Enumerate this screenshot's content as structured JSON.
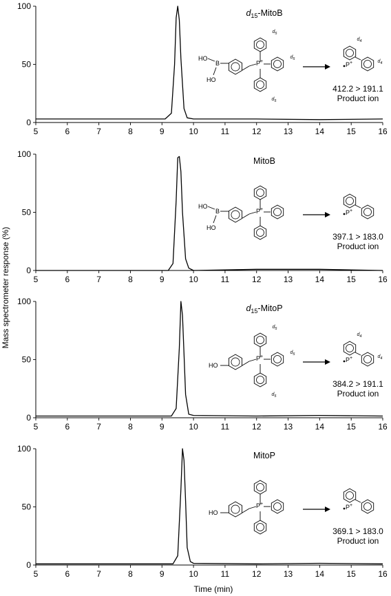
{
  "figure": {
    "ylabel": "Mass spectrometer response (%)",
    "xlabel": "Time (min)"
  },
  "panels": [
    {
      "compound_label": {
        "prefix": "d",
        "sub": "15",
        "name": "-MitoB"
      },
      "headgroup": "boronic",
      "deuterated": true,
      "mrm": "412.2 > 191.1",
      "product_label": "Product ion"
    },
    {
      "compound_label": {
        "prefix": "",
        "sub": "",
        "name": "MitoB"
      },
      "headgroup": "boronic",
      "deuterated": false,
      "mrm": "397.1 > 183.0",
      "product_label": "Product ion"
    },
    {
      "compound_label": {
        "prefix": "d",
        "sub": "15",
        "name": "-MitoP"
      },
      "headgroup": "phenol",
      "deuterated": true,
      "mrm": "384.2 > 191.1",
      "product_label": "Product ion"
    },
    {
      "compound_label": {
        "prefix": "",
        "sub": "",
        "name": "MitoP"
      },
      "headgroup": "phenol",
      "deuterated": false,
      "mrm": "369.1 > 183.0",
      "product_label": "Product ion"
    }
  ],
  "chem_labels": {
    "ho": "HO",
    "b": "B",
    "p_plus": "P+",
    "d5": "d5",
    "d4": "d4"
  },
  "chart_data": [
    {
      "type": "line",
      "title": "",
      "xlabel": "Time (min)",
      "ylabel": "Mass spectrometer response (%)",
      "xlim": [
        5,
        16
      ],
      "ylim": [
        0,
        100
      ],
      "xticks": [
        5,
        6,
        7,
        8,
        9,
        10,
        11,
        12,
        13,
        14,
        15,
        16
      ],
      "yticks": [
        0,
        50,
        100
      ],
      "grid": false,
      "series": [
        {
          "x": [
            5,
            8,
            9.1,
            9.3,
            9.4,
            9.45,
            9.5,
            9.55,
            9.6,
            9.7,
            9.8,
            10,
            12,
            14,
            16
          ],
          "y": [
            3,
            3,
            3,
            8,
            50,
            90,
            100,
            88,
            55,
            12,
            4,
            3,
            3,
            2.5,
            3
          ]
        }
      ]
    },
    {
      "type": "line",
      "title": "",
      "xlabel": "Time (min)",
      "ylabel": "Mass spectrometer response (%)",
      "xlim": [
        5,
        16
      ],
      "ylim": [
        0,
        100
      ],
      "xticks": [
        5,
        6,
        7,
        8,
        9,
        10,
        11,
        12,
        13,
        14,
        15,
        16
      ],
      "yticks": [
        0,
        50,
        100
      ],
      "grid": false,
      "series": [
        {
          "x": [
            5,
            8,
            9.2,
            9.35,
            9.45,
            9.5,
            9.55,
            9.6,
            9.65,
            9.75,
            9.85,
            10,
            12,
            14,
            16
          ],
          "y": [
            0,
            0,
            0,
            6,
            60,
            97,
            98,
            85,
            50,
            10,
            2,
            0,
            1,
            1,
            0
          ]
        }
      ]
    },
    {
      "type": "line",
      "title": "",
      "xlabel": "Time (min)",
      "ylabel": "Mass spectrometer response (%)",
      "xlim": [
        5,
        16
      ],
      "ylim": [
        0,
        100
      ],
      "xticks": [
        5,
        6,
        7,
        8,
        9,
        10,
        11,
        12,
        13,
        14,
        15,
        16
      ],
      "yticks": [
        0,
        50,
        100
      ],
      "grid": false,
      "series": [
        {
          "x": [
            5,
            8,
            9.3,
            9.45,
            9.55,
            9.6,
            9.65,
            9.7,
            9.75,
            9.85,
            10,
            12,
            14,
            16
          ],
          "y": [
            1.5,
            1.5,
            1.5,
            8,
            60,
            100,
            88,
            55,
            20,
            3,
            2,
            1.5,
            2,
            1.5
          ]
        }
      ]
    },
    {
      "type": "line",
      "title": "",
      "xlabel": "Time (min)",
      "ylabel": "Mass spectrometer response (%)",
      "xlim": [
        5,
        16
      ],
      "ylim": [
        0,
        100
      ],
      "xticks": [
        5,
        6,
        7,
        8,
        9,
        10,
        11,
        12,
        13,
        14,
        15,
        16
      ],
      "yticks": [
        0,
        50,
        100
      ],
      "grid": false,
      "series": [
        {
          "x": [
            5,
            8,
            9.35,
            9.5,
            9.6,
            9.65,
            9.7,
            9.75,
            9.8,
            9.9,
            10,
            12,
            14,
            16
          ],
          "y": [
            1,
            1,
            1,
            8,
            65,
            100,
            90,
            55,
            15,
            3,
            1.5,
            1,
            1.5,
            1
          ]
        }
      ]
    }
  ]
}
